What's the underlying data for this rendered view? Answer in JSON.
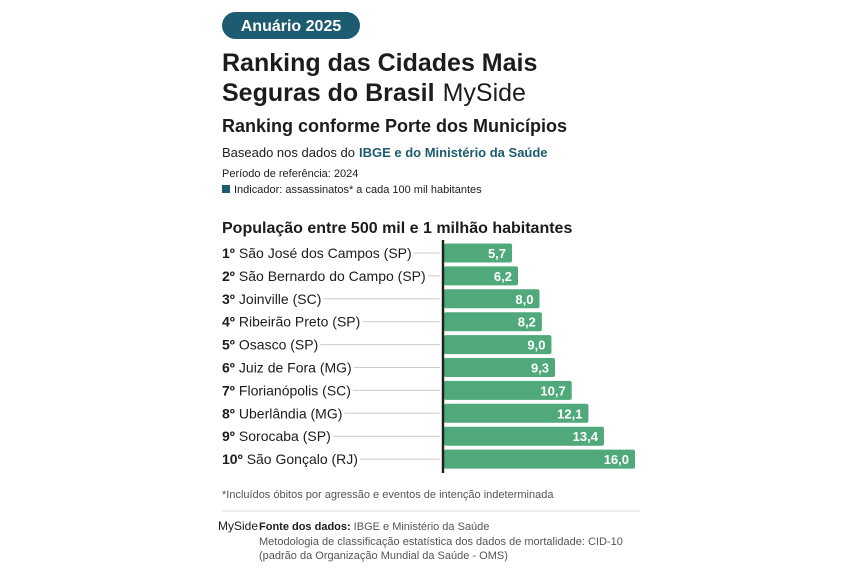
{
  "header": {
    "badge": "Anuário 2025",
    "title_line1": "Ranking das Cidades Mais",
    "title_line2": "Seguras do Brasil",
    "brand": "MySide",
    "subtitle": "Ranking conforme Porte dos Municípios",
    "based_prefix": "Baseado nos dados do",
    "based_source": "IBGE e do Ministério da Saúde",
    "period": "Período de referência: 2024",
    "indicator": "Indicador: assassinatos* a cada 100 mil habitantes"
  },
  "chart_data": {
    "type": "hbar",
    "title": "População entre 500 mil e 1 milhão habitantes",
    "ranks": [
      "1º",
      "2º",
      "3º",
      "4º",
      "5º",
      "6º",
      "7º",
      "8º",
      "9º",
      "10º"
    ],
    "categories": [
      "São José dos Campos (SP)",
      "São Bernardo do Campo (SP)",
      "Joinville (SC)",
      "Ribeirão Preto (SP)",
      "Osasco (SP)",
      "Juiz de Fora (MG)",
      "Florianópolis (SC)",
      "Uberlândia (MG)",
      "Sorocaba (SP)",
      "São Gonçalo (RJ)"
    ],
    "values": [
      5.7,
      6.2,
      8.0,
      8.2,
      9.0,
      9.3,
      10.7,
      12.1,
      13.4,
      16.0
    ],
    "value_labels": [
      "5,7",
      "6,2",
      "8,0",
      "8,2",
      "9,0",
      "9,3",
      "10,7",
      "12,1",
      "13,4",
      "16,0"
    ],
    "color": "#4fa97a"
  },
  "footer": {
    "note": "*Incluídos óbitos por agressão e eventos de intenção indeterminada",
    "brand": "MySide",
    "source_label": "Fonte dos dados:",
    "source": "IBGE e Ministério da Saúde",
    "method_line1": "Metodologia de classificação estatística dos dados de mortalidade: CID-10",
    "method_line2": "(padrão da Organização Mundial da Saúde - OMS)"
  }
}
